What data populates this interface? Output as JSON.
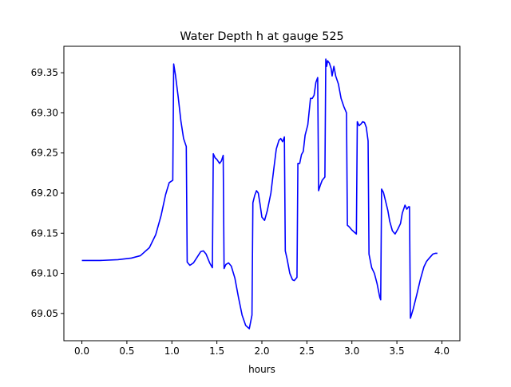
{
  "chart_data": {
    "type": "line",
    "title": "Water Depth h at gauge 525",
    "xlabel": "hours",
    "ylabel": "",
    "xlim": [
      -0.2,
      4.2
    ],
    "ylim": [
      69.016,
      69.383
    ],
    "xticks": [
      0.0,
      0.5,
      1.0,
      1.5,
      2.0,
      2.5,
      3.0,
      3.5,
      4.0
    ],
    "xtick_labels": [
      "0.0",
      "0.5",
      "1.0",
      "1.5",
      "2.0",
      "2.5",
      "3.0",
      "3.5",
      "4.0"
    ],
    "yticks": [
      69.05,
      69.1,
      69.15,
      69.2,
      69.25,
      69.3,
      69.35
    ],
    "ytick_labels": [
      "69.05",
      "69.10",
      "69.15",
      "69.20",
      "69.25",
      "69.30",
      "69.35"
    ],
    "grid": false,
    "legend": "none",
    "series": [
      {
        "color": "#0000ff",
        "points": [
          [
            0.0,
            69.116
          ],
          [
            0.2,
            69.116
          ],
          [
            0.4,
            69.117
          ],
          [
            0.55,
            69.119
          ],
          [
            0.65,
            69.122
          ],
          [
            0.75,
            69.132
          ],
          [
            0.82,
            69.148
          ],
          [
            0.88,
            69.172
          ],
          [
            0.93,
            69.198
          ],
          [
            0.97,
            69.213
          ],
          [
            1.01,
            69.216
          ],
          [
            1.02,
            69.361
          ],
          [
            1.04,
            69.347
          ],
          [
            1.07,
            69.32
          ],
          [
            1.1,
            69.29
          ],
          [
            1.13,
            69.268
          ],
          [
            1.16,
            69.258
          ],
          [
            1.17,
            69.114
          ],
          [
            1.2,
            69.11
          ],
          [
            1.24,
            69.113
          ],
          [
            1.28,
            69.12
          ],
          [
            1.32,
            69.127
          ],
          [
            1.35,
            69.128
          ],
          [
            1.38,
            69.124
          ],
          [
            1.42,
            69.113
          ],
          [
            1.45,
            69.107
          ],
          [
            1.46,
            69.249
          ],
          [
            1.48,
            69.244
          ],
          [
            1.5,
            69.242
          ],
          [
            1.53,
            69.237
          ],
          [
            1.55,
            69.24
          ],
          [
            1.57,
            69.247
          ],
          [
            1.58,
            69.106
          ],
          [
            1.6,
            69.111
          ],
          [
            1.63,
            69.113
          ],
          [
            1.66,
            69.109
          ],
          [
            1.7,
            69.094
          ],
          [
            1.74,
            69.07
          ],
          [
            1.78,
            69.048
          ],
          [
            1.82,
            69.035
          ],
          [
            1.86,
            69.031
          ],
          [
            1.89,
            69.048
          ],
          [
            1.9,
            69.188
          ],
          [
            1.92,
            69.197
          ],
          [
            1.94,
            69.203
          ],
          [
            1.96,
            69.2
          ],
          [
            1.98,
            69.186
          ],
          [
            2.0,
            69.17
          ],
          [
            2.03,
            69.166
          ],
          [
            2.06,
            69.178
          ],
          [
            2.1,
            69.2
          ],
          [
            2.13,
            69.228
          ],
          [
            2.16,
            69.255
          ],
          [
            2.19,
            69.266
          ],
          [
            2.21,
            69.268
          ],
          [
            2.23,
            69.264
          ],
          [
            2.25,
            69.27
          ],
          [
            2.26,
            69.128
          ],
          [
            2.28,
            69.118
          ],
          [
            2.31,
            69.1
          ],
          [
            2.34,
            69.092
          ],
          [
            2.36,
            69.091
          ],
          [
            2.39,
            69.095
          ],
          [
            2.4,
            69.237
          ],
          [
            2.42,
            69.237
          ],
          [
            2.44,
            69.248
          ],
          [
            2.46,
            69.252
          ],
          [
            2.48,
            69.272
          ],
          [
            2.51,
            69.285
          ],
          [
            2.54,
            69.318
          ],
          [
            2.56,
            69.318
          ],
          [
            2.58,
            69.322
          ],
          [
            2.6,
            69.338
          ],
          [
            2.62,
            69.344
          ],
          [
            2.63,
            69.203
          ],
          [
            2.65,
            69.21
          ],
          [
            2.67,
            69.216
          ],
          [
            2.7,
            69.22
          ],
          [
            2.71,
            69.367
          ],
          [
            2.72,
            69.358
          ],
          [
            2.73,
            69.365
          ],
          [
            2.75,
            69.362
          ],
          [
            2.77,
            69.355
          ],
          [
            2.78,
            69.346
          ],
          [
            2.8,
            69.358
          ],
          [
            2.82,
            69.346
          ],
          [
            2.85,
            69.336
          ],
          [
            2.88,
            69.318
          ],
          [
            2.91,
            69.308
          ],
          [
            2.94,
            69.3
          ],
          [
            2.95,
            69.16
          ],
          [
            2.97,
            69.158
          ],
          [
            3.0,
            69.154
          ],
          [
            3.03,
            69.151
          ],
          [
            3.05,
            69.149
          ],
          [
            3.06,
            69.289
          ],
          [
            3.08,
            69.284
          ],
          [
            3.1,
            69.286
          ],
          [
            3.12,
            69.289
          ],
          [
            3.14,
            69.288
          ],
          [
            3.16,
            69.282
          ],
          [
            3.18,
            69.265
          ],
          [
            3.19,
            69.124
          ],
          [
            3.22,
            69.107
          ],
          [
            3.25,
            69.1
          ],
          [
            3.28,
            69.087
          ],
          [
            3.31,
            69.07
          ],
          [
            3.32,
            69.067
          ],
          [
            3.33,
            69.205
          ],
          [
            3.35,
            69.201
          ],
          [
            3.37,
            69.192
          ],
          [
            3.4,
            69.178
          ],
          [
            3.42,
            69.165
          ],
          [
            3.45,
            69.153
          ],
          [
            3.48,
            69.149
          ],
          [
            3.51,
            69.155
          ],
          [
            3.54,
            69.162
          ],
          [
            3.56,
            69.175
          ],
          [
            3.59,
            69.185
          ],
          [
            3.61,
            69.18
          ],
          [
            3.63,
            69.183
          ],
          [
            3.64,
            69.183
          ],
          [
            3.65,
            69.044
          ],
          [
            3.68,
            69.055
          ],
          [
            3.72,
            69.073
          ],
          [
            3.76,
            69.092
          ],
          [
            3.8,
            69.108
          ],
          [
            3.83,
            69.115
          ],
          [
            3.86,
            69.119
          ],
          [
            3.9,
            69.124
          ],
          [
            3.93,
            69.125
          ],
          [
            3.95,
            69.125
          ]
        ]
      }
    ]
  }
}
